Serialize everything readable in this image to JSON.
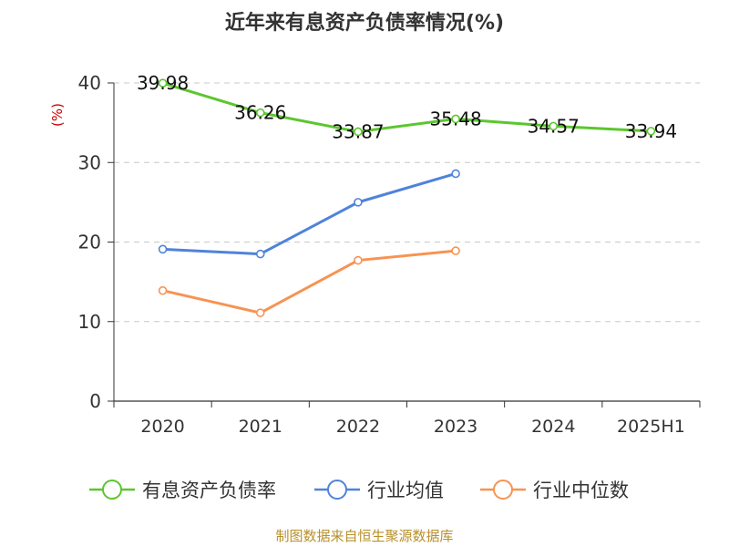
{
  "chart_data": {
    "type": "line",
    "title": "近年来有息资产负债率情况(%)",
    "ylabel": "(%)",
    "xlabel": "",
    "categories": [
      "2020",
      "2021",
      "2022",
      "2023",
      "2024",
      "2025H1"
    ],
    "ylim": [
      0,
      40
    ],
    "yticks": [
      0,
      10,
      20,
      30,
      40
    ],
    "grid": true,
    "legend_position": "bottom",
    "series": [
      {
        "name": "有息资产负债率",
        "color": "#5cc62e",
        "values": [
          39.98,
          36.26,
          33.87,
          35.48,
          34.57,
          33.94
        ],
        "labels": [
          "39.98",
          "36.26",
          "33.87",
          "35.48",
          "34.57",
          "33.94"
        ]
      },
      {
        "name": "行业均值",
        "color": "#4f83d9",
        "values": [
          19.1,
          18.5,
          25.0,
          28.6,
          null,
          null
        ]
      },
      {
        "name": "行业中位数",
        "color": "#f79353",
        "values": [
          13.9,
          11.1,
          17.7,
          18.9,
          null,
          null
        ]
      }
    ],
    "source": "制图数据来自恒生聚源数据库"
  }
}
